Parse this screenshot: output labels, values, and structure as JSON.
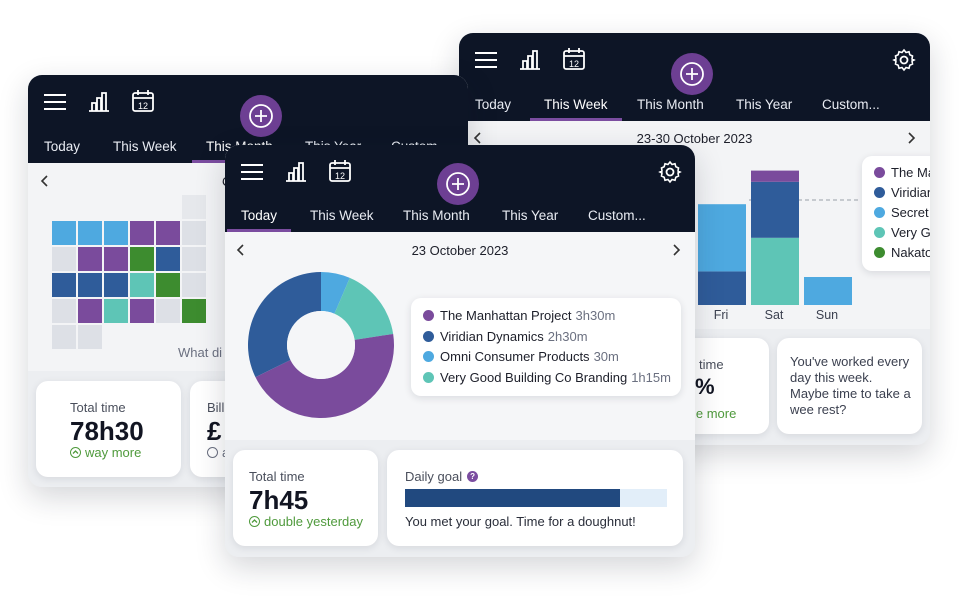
{
  "colors": {
    "project_purple": "#7a4b9c",
    "dark_blue": "#2f5c9a",
    "light_blue": "#4ea9e0",
    "teal": "#5ec5b6",
    "green": "#3d8c2f",
    "nav_bg": "#0d1526",
    "accent": "#6d3f93"
  },
  "back_window": {
    "tabs": [
      "Today",
      "This Week",
      "This Month",
      "This Year",
      "Custom..."
    ],
    "active_tab": "This Week",
    "date_range": "23-30 October 2023",
    "chart_data": {
      "type": "bar",
      "categories": [
        "Fri",
        "Sat",
        "Sun"
      ],
      "series": [
        {
          "name": "The Manhattan Project",
          "values": [
            0,
            1,
            0
          ]
        },
        {
          "name": "Viridian Dynamics",
          "values": [
            3,
            5,
            0
          ]
        },
        {
          "name": "Omni Consumer Products",
          "values": [
            6,
            0,
            2.5
          ]
        },
        {
          "name": "Very Good Building Co Branding",
          "values": [
            0,
            6,
            0
          ]
        }
      ]
    },
    "legend": [
      "The Ma",
      "Viridian",
      "Secret",
      "Very G",
      "Nakato"
    ],
    "card_time_label": "time",
    "card_pct": "%",
    "card_more": "le more",
    "message": "You've worked every day this week. Maybe time to take a wee rest?"
  },
  "middle_window": {
    "tabs": [
      "Today",
      "This Week",
      "This Month",
      "This Year",
      "Custom..."
    ],
    "active_tab": "This Month",
    "date_partial": "O",
    "calendar_caption": "What di",
    "total_time_label": "Total time",
    "total_time_value": "78h30",
    "total_time_delta": "way more",
    "billable_label": "Bill",
    "billable_value": "£",
    "billable_delta": "a"
  },
  "front_window": {
    "tabs": [
      "Today",
      "This Week",
      "This Month",
      "This Year",
      "Custom..."
    ],
    "active_tab": "Today",
    "date": "23 October 2023",
    "donut": {
      "slices": [
        {
          "name": "The Manhattan Project",
          "minutes": 210,
          "color": "#7a4b9c"
        },
        {
          "name": "Viridian Dynamics",
          "minutes": 150,
          "color": "#2f5c9a"
        },
        {
          "name": "Omni Consumer Products",
          "minutes": 30,
          "color": "#4ea9e0"
        },
        {
          "name": "Very Good Building Co Branding",
          "minutes": 75,
          "color": "#5ec5b6"
        }
      ]
    },
    "legend": [
      {
        "name": "The Manhattan Project",
        "duration": "3h30m",
        "color": "#7a4b9c"
      },
      {
        "name": "Viridian Dynamics",
        "duration": "2h30m",
        "color": "#2f5c9a"
      },
      {
        "name": "Omni Consumer Products",
        "duration": "30m",
        "color": "#4ea9e0"
      },
      {
        "name": "Very Good Building Co Branding",
        "duration": "1h15m",
        "color": "#5ec5b6"
      }
    ],
    "total_time_label": "Total time",
    "total_time_value": "7h45",
    "total_time_delta": "double yesterday",
    "daily_goal_label": "Daily goal",
    "daily_goal_help": "?",
    "daily_goal_progress": 0.82,
    "daily_goal_message": "You met your goal. Time for a doughnut!"
  }
}
